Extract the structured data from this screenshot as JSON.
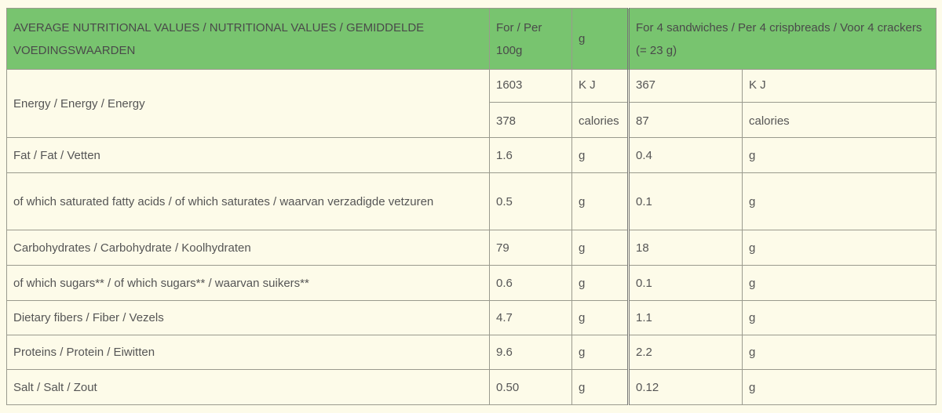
{
  "table": {
    "header": [
      "AVERAGE NUTRITIONAL VALUES / NUTRITIONAL VALUES / GEMIDDELDE VOEDINGSWAARDEN",
      "For / Per 100g",
      "g",
      "For 4 sandwiches / Per 4 crispbreads / Voor 4 crackers (= 23 g)"
    ],
    "rows": [
      [
        "Energy / Energy / Energy",
        "1603",
        "K J",
        "367",
        "K J"
      ],
      [
        "378",
        "calories",
        "87",
        "calories"
      ],
      [
        "Fat / Fat / Vetten",
        "1.6",
        "g",
        "0.4",
        "g"
      ],
      [
        "of which saturated fatty acids / of which saturates / waarvan verzadigde vetzuren",
        "0.5",
        "g",
        "0.1",
        "g"
      ],
      [
        "Carbohydrates / Carbohydrate / Koolhydraten",
        "79",
        "g",
        "18",
        "g"
      ],
      [
        "of which sugars** / of which sugars** / waarvan suikers**",
        "0.6",
        "g",
        "0.1",
        "g"
      ],
      [
        "Dietary fibers / Fiber / Vezels",
        "4.7",
        "g",
        "1.1",
        "g"
      ],
      [
        "Proteins / Protein / Eiwitten",
        "9.6",
        "g",
        "2.2",
        "g"
      ],
      [
        "Salt / Salt / Zout",
        "0.50",
        "g",
        "0.12",
        "g"
      ]
    ]
  }
}
